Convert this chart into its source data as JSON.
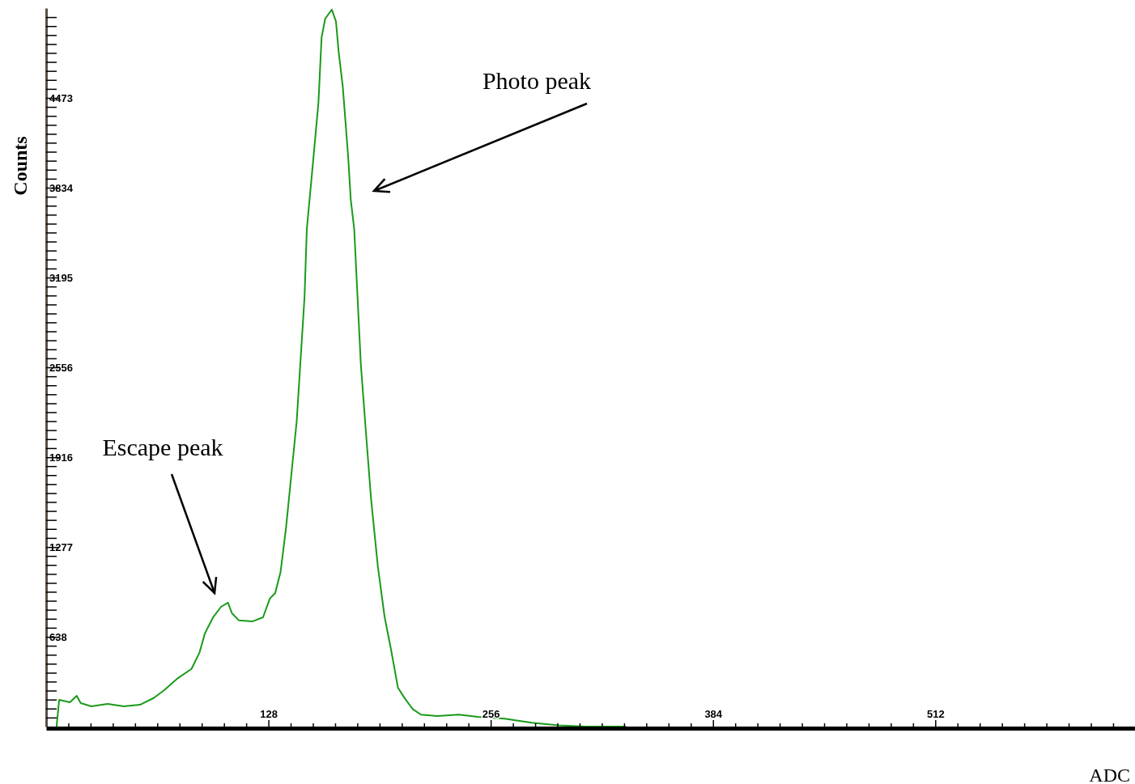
{
  "chart_data": {
    "type": "line",
    "xlabel": "ADC",
    "ylabel": "Counts",
    "xlim": [
      0,
      627
    ],
    "ylim": [
      0,
      5112
    ],
    "xticks": [
      {
        "value": 12.8,
        "label": null
      },
      {
        "value": 25.6,
        "label": null
      },
      {
        "value": 38.4,
        "label": null
      },
      {
        "value": 51.2,
        "label": null
      },
      {
        "value": 64,
        "label": null
      },
      {
        "value": 76.8,
        "label": null
      },
      {
        "value": 89.6,
        "label": null
      },
      {
        "value": 102.4,
        "label": null
      },
      {
        "value": 115.2,
        "label": null
      },
      128,
      {
        "value": 140.8,
        "label": null
      },
      {
        "value": 153.6,
        "label": null
      },
      {
        "value": 166.4,
        "label": null
      },
      {
        "value": 179.2,
        "label": null
      },
      {
        "value": 192,
        "label": null
      },
      {
        "value": 204.8,
        "label": null
      },
      {
        "value": 217.6,
        "label": null
      },
      {
        "value": 230.4,
        "label": null
      },
      {
        "value": 243.2,
        "label": null
      },
      256,
      {
        "value": 268.8,
        "label": null
      },
      {
        "value": 281.6,
        "label": null
      },
      {
        "value": 294.4,
        "label": null
      },
      {
        "value": 307.2,
        "label": null
      },
      {
        "value": 320,
        "label": null
      },
      {
        "value": 332.8,
        "label": null
      },
      {
        "value": 345.6,
        "label": null
      },
      {
        "value": 358.4,
        "label": null
      },
      {
        "value": 371.2,
        "label": null
      },
      384,
      {
        "value": 396.8,
        "label": null
      },
      {
        "value": 409.6,
        "label": null
      },
      {
        "value": 422.4,
        "label": null
      },
      {
        "value": 435.2,
        "label": null
      },
      {
        "value": 448,
        "label": null
      },
      {
        "value": 460.8,
        "label": null
      },
      {
        "value": 473.6,
        "label": null
      },
      {
        "value": 486.4,
        "label": null
      },
      {
        "value": 499.2,
        "label": null
      },
      512,
      {
        "value": 524.8,
        "label": null
      },
      {
        "value": 537.6,
        "label": null
      },
      {
        "value": 550.4,
        "label": null
      },
      {
        "value": 563.2,
        "label": null
      },
      {
        "value": 576,
        "label": null
      },
      {
        "value": 588.8,
        "label": null
      },
      {
        "value": 601.6,
        "label": null
      },
      {
        "value": 614.4,
        "label": null
      }
    ],
    "yticks": [
      {
        "value": 64,
        "label": null
      },
      {
        "value": 128,
        "label": null
      },
      {
        "value": 192,
        "label": null
      },
      {
        "value": 256,
        "label": null
      },
      {
        "value": 320,
        "label": null
      },
      {
        "value": 383,
        "label": null
      },
      {
        "value": 447,
        "label": null
      },
      {
        "value": 511,
        "label": null
      },
      {
        "value": 575,
        "label": null
      },
      638,
      {
        "value": 703,
        "label": null
      },
      {
        "value": 767,
        "label": null
      },
      {
        "value": 831,
        "label": null
      },
      {
        "value": 895,
        "label": null
      },
      {
        "value": 959,
        "label": null
      },
      {
        "value": 1022,
        "label": null
      },
      {
        "value": 1086,
        "label": null
      },
      {
        "value": 1150,
        "label": null
      },
      {
        "value": 1214,
        "label": null
      },
      1277,
      {
        "value": 1342,
        "label": null
      },
      {
        "value": 1406,
        "label": null
      },
      {
        "value": 1470,
        "label": null
      },
      {
        "value": 1534,
        "label": null
      },
      {
        "value": 1598,
        "label": null
      },
      {
        "value": 1661,
        "label": null
      },
      {
        "value": 1725,
        "label": null
      },
      {
        "value": 1789,
        "label": null
      },
      {
        "value": 1853,
        "label": null
      },
      1916,
      {
        "value": 1981,
        "label": null
      },
      {
        "value": 2045,
        "label": null
      },
      {
        "value": 2109,
        "label": null
      },
      {
        "value": 2173,
        "label": null
      },
      {
        "value": 2237,
        "label": null
      },
      {
        "value": 2300,
        "label": null
      },
      {
        "value": 2364,
        "label": null
      },
      {
        "value": 2428,
        "label": null
      },
      {
        "value": 2492,
        "label": null
      },
      2556,
      {
        "value": 2620,
        "label": null
      },
      {
        "value": 2684,
        "label": null
      },
      {
        "value": 2748,
        "label": null
      },
      {
        "value": 2812,
        "label": null
      },
      {
        "value": 2876,
        "label": null
      },
      {
        "value": 2939,
        "label": null
      },
      {
        "value": 3003,
        "label": null
      },
      {
        "value": 3067,
        "label": null
      },
      {
        "value": 3131,
        "label": null
      },
      3195,
      {
        "value": 3259,
        "label": null
      },
      {
        "value": 3323,
        "label": null
      },
      {
        "value": 3387,
        "label": null
      },
      {
        "value": 3451,
        "label": null
      },
      {
        "value": 3515,
        "label": null
      },
      {
        "value": 3578,
        "label": null
      },
      {
        "value": 3642,
        "label": null
      },
      {
        "value": 3706,
        "label": null
      },
      {
        "value": 3770,
        "label": null
      },
      3834,
      {
        "value": 3898,
        "label": null
      },
      {
        "value": 3962,
        "label": null
      },
      {
        "value": 4026,
        "label": null
      },
      {
        "value": 4090,
        "label": null
      },
      {
        "value": 4154,
        "label": null
      },
      {
        "value": 4217,
        "label": null
      },
      {
        "value": 4281,
        "label": null
      },
      {
        "value": 4345,
        "label": null
      },
      {
        "value": 4409,
        "label": null
      },
      4473,
      {
        "value": 4537,
        "label": null
      },
      {
        "value": 4601,
        "label": null
      },
      {
        "value": 4665,
        "label": null
      },
      {
        "value": 4729,
        "label": null
      },
      {
        "value": 4793,
        "label": null
      },
      {
        "value": 4856,
        "label": null
      },
      {
        "value": 4920,
        "label": null
      },
      {
        "value": 4984,
        "label": null
      },
      {
        "value": 5048,
        "label": null
      }
    ],
    "grid": false,
    "marker": "none",
    "line_style": "solid",
    "series": [
      {
        "color": "#1a9a1a",
        "x": [
          6,
          7.5,
          13.7,
          17.6,
          19.9,
          26,
          35.4,
          44.7,
          54,
          61.9,
          68,
          75.9,
          83.7,
          88.3,
          91.4,
          96.1,
          100.7,
          104.7,
          107,
          110.9,
          118.7,
          124.9,
          128.8,
          131.9,
          135,
          138.1,
          141.2,
          144.3,
          148.8,
          150.1,
          153.7,
          156.8,
          158.6,
          160.7,
          164.5,
          166.9,
          168.4,
          170.8,
          173.9,
          175.4,
          177.4,
          181.2,
          184.1,
          187.1,
          191,
          194.9,
          198.7,
          202.6,
          206.5,
          211.2,
          215.8,
          225.2,
          237.6,
          248.5,
          264,
          279.6,
          295.1,
          310.6,
          334
        ],
        "values": [
          0,
          190,
          173,
          219,
          167,
          144,
          161,
          144,
          155,
          203,
          259,
          345,
          410,
          526,
          662,
          777,
          852,
          881,
          806,
          756,
          748,
          777,
          910,
          950,
          1101,
          1410,
          1792,
          2176,
          3059,
          3539,
          4018,
          4440,
          4901,
          5037,
          5101,
          5016,
          4805,
          4556,
          4057,
          3750,
          3539,
          2579,
          2101,
          1620,
          1140,
          780,
          541,
          276,
          201,
          123,
          85,
          75,
          85,
          69,
          56,
          27,
          8,
          0,
          0
        ]
      }
    ],
    "annotations": [
      "Photo peak",
      "Escape peak"
    ]
  }
}
